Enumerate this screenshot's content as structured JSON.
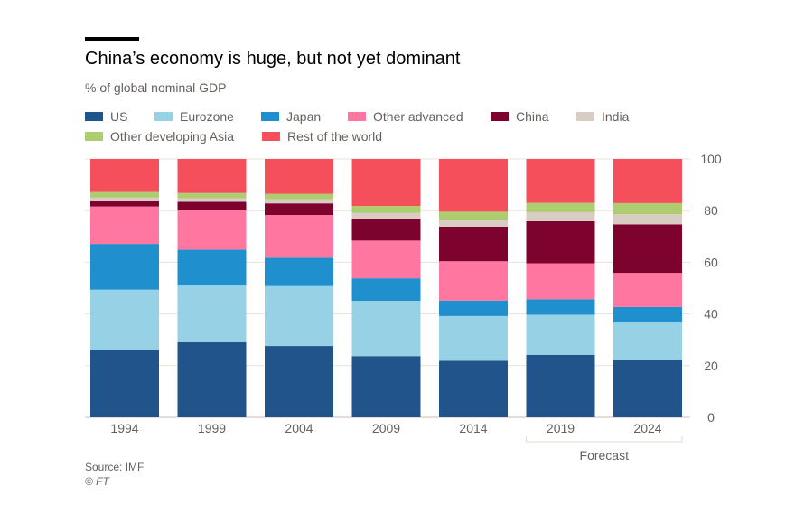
{
  "title": "China’s economy is huge, but not yet dominant",
  "subtitle": "% of global nominal GDP",
  "source": "Source: IMF",
  "credit": "© FT",
  "forecast_label": "Forecast",
  "chart_data": {
    "type": "bar",
    "stacked": true,
    "title": "China’s economy is huge, but not yet dominant",
    "ylabel": "% of global nominal GDP",
    "ylim": [
      0,
      100
    ],
    "yticks": [
      0,
      20,
      40,
      60,
      80,
      100
    ],
    "y_axis_side": "right",
    "grid": true,
    "legend_placement": "top",
    "categories": [
      "1994",
      "1999",
      "2004",
      "2009",
      "2014",
      "2019",
      "2024"
    ],
    "forecast_categories": [
      "2019",
      "2024"
    ],
    "series": [
      {
        "name": "US",
        "color": "#20548b",
        "values": [
          26.1,
          29.1,
          27.6,
          23.7,
          21.9,
          24.2,
          22.3
        ]
      },
      {
        "name": "Eurozone",
        "color": "#96d1e5",
        "values": [
          23.3,
          21.9,
          23.2,
          21.4,
          17.3,
          15.5,
          14.4
        ]
      },
      {
        "name": "Japan",
        "color": "#1f8fce",
        "values": [
          17.7,
          13.9,
          11.0,
          8.7,
          6.0,
          6.0,
          6.0
        ]
      },
      {
        "name": "Other advanced",
        "color": "#ff76a0",
        "values": [
          14.5,
          15.3,
          16.5,
          14.6,
          15.2,
          13.9,
          13.2
        ]
      },
      {
        "name": "China",
        "color": "#7d032e",
        "values": [
          2.2,
          3.2,
          4.5,
          8.5,
          13.4,
          16.3,
          18.8
        ]
      },
      {
        "name": "India",
        "color": "#d9ccc3",
        "values": [
          1.2,
          1.4,
          1.6,
          2.2,
          2.4,
          3.5,
          3.9
        ]
      },
      {
        "name": "Other developing Asia",
        "color": "#aecc70",
        "values": [
          2.2,
          2.0,
          2.1,
          2.7,
          3.4,
          3.6,
          4.3
        ]
      },
      {
        "name": "Rest of the world",
        "color": "#f44f5b",
        "values": [
          12.8,
          13.2,
          13.5,
          18.2,
          20.4,
          17.0,
          17.1
        ]
      }
    ]
  }
}
